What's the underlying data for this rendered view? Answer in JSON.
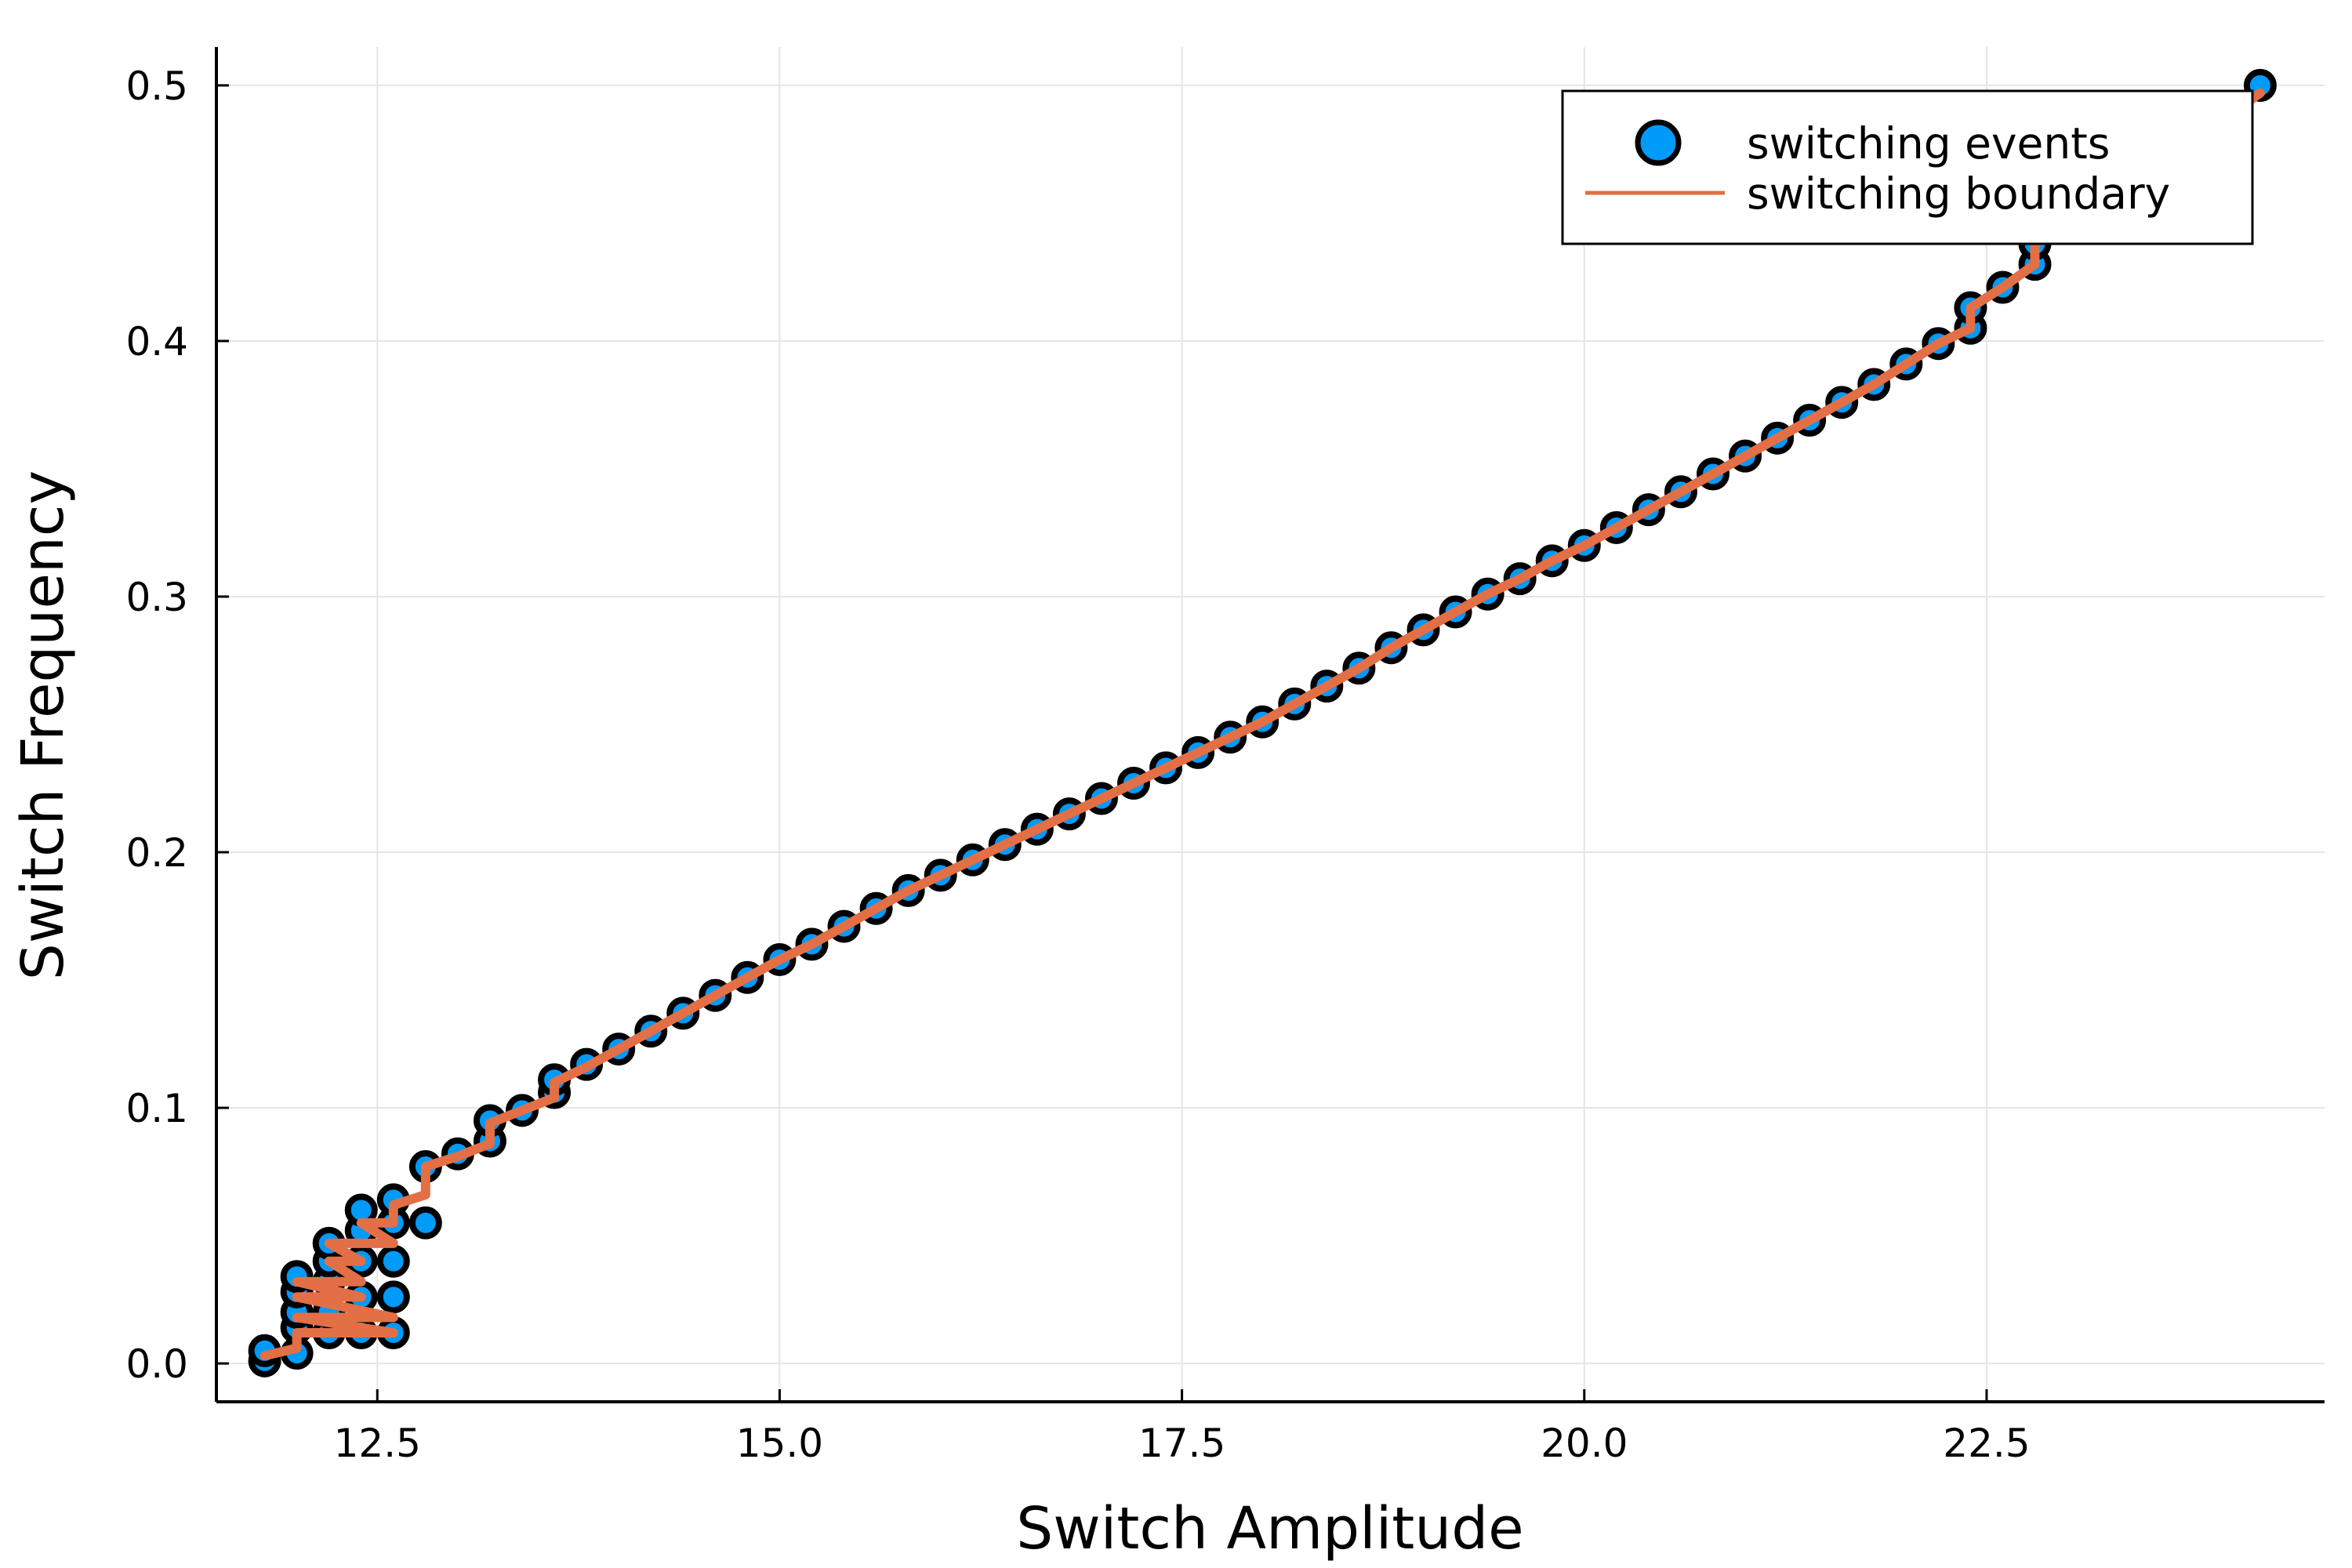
{
  "chart_data": {
    "type": "scatter",
    "title": "",
    "xlabel": "Switch Amplitude",
    "ylabel": "Switch Frequency",
    "xlim": [
      11.5,
      24.6
    ],
    "ylim": [
      -0.015,
      0.515
    ],
    "xticks": [
      "12.5",
      "15.0",
      "17.5",
      "20.0",
      "22.5"
    ],
    "xtick_values": [
      12.5,
      15.0,
      17.5,
      20.0,
      22.5
    ],
    "yticks": [
      "0.0",
      "0.1",
      "0.2",
      "0.3",
      "0.4",
      "0.5"
    ],
    "ytick_values": [
      0.0,
      0.1,
      0.2,
      0.3,
      0.4,
      0.5
    ],
    "grid": true,
    "legend_position": "top-right",
    "series": [
      {
        "name": "switching events",
        "kind": "scatter",
        "color": "#009af9",
        "x": [
          11.8,
          11.8,
          12.0,
          12.0,
          12.0,
          12.0,
          12.0,
          12.2,
          12.2,
          12.2,
          12.2,
          12.2,
          12.4,
          12.4,
          12.4,
          12.4,
          12.4,
          12.6,
          12.6,
          12.6,
          12.6,
          12.6,
          12.8,
          12.8,
          13.0,
          13.2,
          13.2,
          13.4,
          13.6,
          13.6,
          13.8,
          14.0,
          14.2,
          14.4,
          14.6,
          14.8,
          15.0,
          15.2,
          15.4,
          15.6,
          15.8,
          16.0,
          16.2,
          16.4,
          16.6,
          16.8,
          17.0,
          17.2,
          17.4,
          17.6,
          17.8,
          18.0,
          18.2,
          18.4,
          18.6,
          18.8,
          19.0,
          19.2,
          19.4,
          19.6,
          19.8,
          20.0,
          20.2,
          20.4,
          20.6,
          20.8,
          21.0,
          21.2,
          21.4,
          21.6,
          21.8,
          22.0,
          22.2,
          22.4,
          22.4,
          22.6,
          22.8,
          22.8,
          23.0,
          24.2
        ],
        "y": [
          0.001,
          0.005,
          0.004,
          0.014,
          0.02,
          0.028,
          0.034,
          0.012,
          0.02,
          0.032,
          0.04,
          0.047,
          0.012,
          0.026,
          0.04,
          0.052,
          0.06,
          0.012,
          0.026,
          0.04,
          0.055,
          0.064,
          0.055,
          0.077,
          0.082,
          0.087,
          0.095,
          0.099,
          0.106,
          0.111,
          0.117,
          0.123,
          0.13,
          0.137,
          0.144,
          0.151,
          0.158,
          0.164,
          0.171,
          0.178,
          0.185,
          0.191,
          0.197,
          0.203,
          0.209,
          0.215,
          0.221,
          0.227,
          0.233,
          0.239,
          0.245,
          0.251,
          0.258,
          0.265,
          0.272,
          0.28,
          0.287,
          0.294,
          0.301,
          0.307,
          0.314,
          0.32,
          0.327,
          0.334,
          0.341,
          0.348,
          0.355,
          0.362,
          0.369,
          0.376,
          0.383,
          0.391,
          0.399,
          0.405,
          0.413,
          0.421,
          0.43,
          0.438,
          0.444,
          0.5
        ]
      },
      {
        "name": "switching boundary",
        "kind": "line",
        "color": "#e26f46",
        "x": [
          11.8,
          12.0,
          12.0,
          12.6,
          12.0,
          12.6,
          12.0,
          12.4,
          12.0,
          12.4,
          12.2,
          12.4,
          12.2,
          12.6,
          12.4,
          12.6,
          12.6,
          12.8,
          12.8,
          13.0,
          13.2,
          13.2,
          13.4,
          13.6,
          13.6,
          13.8,
          14.0,
          14.2,
          14.4,
          14.6,
          14.8,
          15.0,
          15.2,
          15.4,
          15.6,
          15.8,
          16.0,
          16.2,
          16.4,
          16.6,
          16.8,
          17.0,
          17.2,
          17.4,
          17.6,
          17.8,
          18.0,
          18.2,
          18.4,
          18.6,
          18.8,
          19.0,
          19.2,
          19.4,
          19.6,
          19.8,
          20.0,
          20.2,
          20.4,
          20.6,
          20.8,
          21.0,
          21.2,
          21.4,
          21.6,
          21.8,
          22.0,
          22.2,
          22.4,
          22.4,
          22.6,
          22.8,
          22.8,
          23.0,
          24.2
        ],
        "y": [
          0.003,
          0.006,
          0.012,
          0.012,
          0.018,
          0.018,
          0.026,
          0.026,
          0.032,
          0.032,
          0.04,
          0.04,
          0.047,
          0.047,
          0.055,
          0.055,
          0.062,
          0.066,
          0.077,
          0.081,
          0.086,
          0.094,
          0.099,
          0.104,
          0.11,
          0.116,
          0.123,
          0.13,
          0.137,
          0.144,
          0.151,
          0.158,
          0.164,
          0.171,
          0.178,
          0.185,
          0.191,
          0.197,
          0.203,
          0.209,
          0.215,
          0.221,
          0.227,
          0.233,
          0.239,
          0.245,
          0.251,
          0.258,
          0.265,
          0.272,
          0.28,
          0.287,
          0.294,
          0.301,
          0.307,
          0.314,
          0.32,
          0.327,
          0.334,
          0.341,
          0.348,
          0.355,
          0.362,
          0.369,
          0.376,
          0.383,
          0.391,
          0.399,
          0.405,
          0.413,
          0.421,
          0.43,
          0.438,
          0.444,
          0.497
        ]
      }
    ]
  }
}
